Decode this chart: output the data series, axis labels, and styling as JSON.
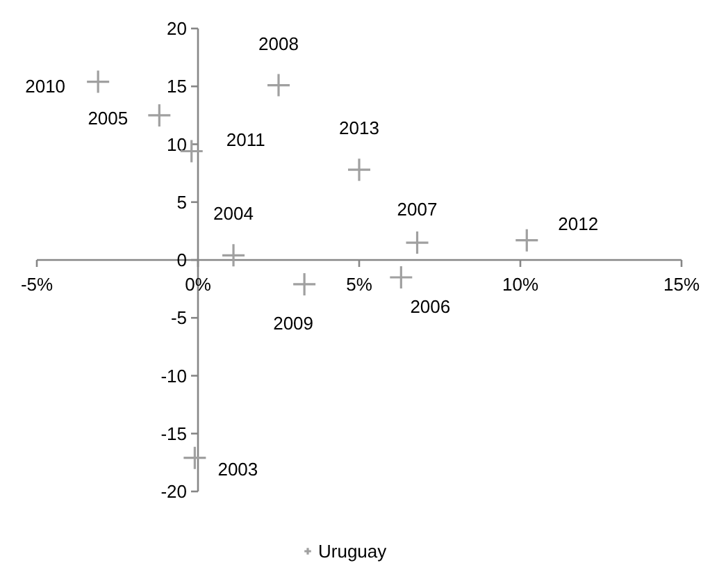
{
  "chart_data": {
    "type": "scatter",
    "marker": "cross",
    "legend": "bottom",
    "grid": false,
    "xlim": [
      -5,
      15
    ],
    "ylim": [
      -20,
      20
    ],
    "xticks": [
      {
        "value": -5,
        "label": "-5%"
      },
      {
        "value": 0,
        "label": "0%"
      },
      {
        "value": 5,
        "label": "5%"
      },
      {
        "value": 10,
        "label": "10%"
      },
      {
        "value": 15,
        "label": "15%"
      }
    ],
    "yticks": [
      -20,
      -15,
      -10,
      -5,
      0,
      5,
      10,
      15,
      20
    ],
    "series": [
      {
        "name": "Uruguay",
        "color": "#a0a0a0",
        "x": [
          -0.1,
          1.1,
          -1.2,
          6.3,
          6.8,
          2.5,
          3.3,
          -3.1,
          -0.2,
          10.2,
          5.0
        ],
        "values": [
          -17.1,
          0.4,
          12.5,
          -1.5,
          1.5,
          15.1,
          -2.1,
          15.4,
          9.4,
          1.7,
          7.8
        ]
      }
    ],
    "annotations": [
      {
        "text": "2003",
        "x": -0.1,
        "y": -17.1
      },
      {
        "text": "2004",
        "x": 1.1,
        "y": 0.4
      },
      {
        "text": "2005",
        "x": -1.2,
        "y": 12.5
      },
      {
        "text": "2006",
        "x": 6.3,
        "y": -1.5
      },
      {
        "text": "2007",
        "x": 6.8,
        "y": 1.5
      },
      {
        "text": "2008",
        "x": 2.5,
        "y": 15.1
      },
      {
        "text": "2009",
        "x": 3.3,
        "y": -2.1
      },
      {
        "text": "2010",
        "x": -3.1,
        "y": 15.4
      },
      {
        "text": "2011",
        "x": -0.2,
        "y": 9.4
      },
      {
        "text": "2012",
        "x": 10.2,
        "y": 1.7
      },
      {
        "text": "2013",
        "x": 5.0,
        "y": 7.8
      }
    ]
  }
}
